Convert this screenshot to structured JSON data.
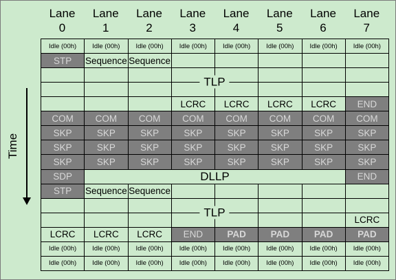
{
  "lanes": [
    {
      "word": "Lane",
      "num": "0"
    },
    {
      "word": "Lane",
      "num": "1"
    },
    {
      "word": "Lane",
      "num": "2"
    },
    {
      "word": "Lane",
      "num": "3"
    },
    {
      "word": "Lane",
      "num": "4"
    },
    {
      "word": "Lane",
      "num": "5"
    },
    {
      "word": "Lane",
      "num": "6"
    },
    {
      "word": "Lane",
      "num": "7"
    }
  ],
  "time_label": "Time",
  "rows": [
    {
      "kind": "cells",
      "cells": [
        {
          "text": "Idle (00h)",
          "style": "small"
        },
        {
          "text": "Idle (00h)",
          "style": "small"
        },
        {
          "text": "Idle (00h)",
          "style": "small"
        },
        {
          "text": "Idle (00h)",
          "style": "small"
        },
        {
          "text": "Idle (00h)",
          "style": "small"
        },
        {
          "text": "Idle (00h)",
          "style": "small"
        },
        {
          "text": "Idle (00h)",
          "style": "small"
        },
        {
          "text": "Idle (00h)",
          "style": "small"
        }
      ]
    },
    {
      "kind": "cells",
      "cells": [
        {
          "text": "STP",
          "style": "gray"
        },
        {
          "text": "Sequence",
          "style": ""
        },
        {
          "text": "Sequence",
          "style": ""
        },
        {
          "text": "",
          "style": ""
        },
        {
          "text": "",
          "style": ""
        },
        {
          "text": "",
          "style": ""
        },
        {
          "text": "",
          "style": ""
        },
        {
          "text": "",
          "style": ""
        }
      ]
    },
    {
      "kind": "span",
      "text": "TLP",
      "rows": 2
    },
    {
      "kind": "cells",
      "cells": [
        {
          "text": "",
          "style": ""
        },
        {
          "text": "",
          "style": ""
        },
        {
          "text": "",
          "style": ""
        },
        {
          "text": "LCRC",
          "style": ""
        },
        {
          "text": "LCRC",
          "style": ""
        },
        {
          "text": "LCRC",
          "style": ""
        },
        {
          "text": "LCRC",
          "style": ""
        },
        {
          "text": "END",
          "style": "gray"
        }
      ]
    },
    {
      "kind": "cells",
      "cells": [
        {
          "text": "COM",
          "style": "gray"
        },
        {
          "text": "COM",
          "style": "gray"
        },
        {
          "text": "COM",
          "style": "gray"
        },
        {
          "text": "COM",
          "style": "gray"
        },
        {
          "text": "COM",
          "style": "gray"
        },
        {
          "text": "COM",
          "style": "gray"
        },
        {
          "text": "COM",
          "style": "gray"
        },
        {
          "text": "COM",
          "style": "gray"
        }
      ]
    },
    {
      "kind": "cells",
      "cells": [
        {
          "text": "SKP",
          "style": "gray"
        },
        {
          "text": "SKP",
          "style": "gray"
        },
        {
          "text": "SKP",
          "style": "gray"
        },
        {
          "text": "SKP",
          "style": "gray"
        },
        {
          "text": "SKP",
          "style": "gray"
        },
        {
          "text": "SKP",
          "style": "gray"
        },
        {
          "text": "SKP",
          "style": "gray"
        },
        {
          "text": "SKP",
          "style": "gray"
        }
      ]
    },
    {
      "kind": "cells",
      "cells": [
        {
          "text": "SKP",
          "style": "gray"
        },
        {
          "text": "SKP",
          "style": "gray"
        },
        {
          "text": "SKP",
          "style": "gray"
        },
        {
          "text": "SKP",
          "style": "gray"
        },
        {
          "text": "SKP",
          "style": "gray"
        },
        {
          "text": "SKP",
          "style": "gray"
        },
        {
          "text": "SKP",
          "style": "gray"
        },
        {
          "text": "SKP",
          "style": "gray"
        }
      ]
    },
    {
      "kind": "cells",
      "cells": [
        {
          "text": "SKP",
          "style": "gray"
        },
        {
          "text": "SKP",
          "style": "gray"
        },
        {
          "text": "SKP",
          "style": "gray"
        },
        {
          "text": "SKP",
          "style": "gray"
        },
        {
          "text": "SKP",
          "style": "gray"
        },
        {
          "text": "SKP",
          "style": "gray"
        },
        {
          "text": "SKP",
          "style": "gray"
        },
        {
          "text": "SKP",
          "style": "gray"
        }
      ]
    },
    {
      "kind": "dllp",
      "first": {
        "text": "SDP",
        "style": "gray"
      },
      "middle": "DLLP",
      "last": {
        "text": "END",
        "style": "gray"
      }
    },
    {
      "kind": "cells",
      "cells": [
        {
          "text": "STP",
          "style": "gray"
        },
        {
          "text": "Sequence",
          "style": ""
        },
        {
          "text": "Sequence",
          "style": ""
        },
        {
          "text": "",
          "style": ""
        },
        {
          "text": "",
          "style": ""
        },
        {
          "text": "",
          "style": ""
        },
        {
          "text": "",
          "style": ""
        },
        {
          "text": "",
          "style": ""
        }
      ]
    },
    {
      "kind": "span",
      "text": "TLP",
      "rows": 2,
      "last_lane_bottom": "LCRC"
    },
    {
      "kind": "cells",
      "cells": [
        {
          "text": "LCRC",
          "style": ""
        },
        {
          "text": "LCRC",
          "style": ""
        },
        {
          "text": "LCRC",
          "style": ""
        },
        {
          "text": "END",
          "style": "gray"
        },
        {
          "text": "PAD",
          "style": "gray bold"
        },
        {
          "text": "PAD",
          "style": "gray bold"
        },
        {
          "text": "PAD",
          "style": "gray bold"
        },
        {
          "text": "PAD",
          "style": "gray bold"
        }
      ]
    },
    {
      "kind": "cells",
      "cells": [
        {
          "text": "Idle (00h)",
          "style": "small"
        },
        {
          "text": "Idle (00h)",
          "style": "small"
        },
        {
          "text": "Idle (00h)",
          "style": "small"
        },
        {
          "text": "Idle (00h)",
          "style": "small"
        },
        {
          "text": "Idle (00h)",
          "style": "small"
        },
        {
          "text": "Idle (00h)",
          "style": "small"
        },
        {
          "text": "Idle (00h)",
          "style": "small"
        },
        {
          "text": "Idle (00h)",
          "style": "small"
        }
      ]
    },
    {
      "kind": "cells",
      "cells": [
        {
          "text": "Idle (00h)",
          "style": "small"
        },
        {
          "text": "Idle (00h)",
          "style": "small"
        },
        {
          "text": "Idle (00h)",
          "style": "small"
        },
        {
          "text": "Idle (00h)",
          "style": "small"
        },
        {
          "text": "Idle (00h)",
          "style": "small"
        },
        {
          "text": "Idle (00h)",
          "style": "small"
        },
        {
          "text": "Idle (00h)",
          "style": "small"
        },
        {
          "text": "Idle (00h)",
          "style": "small"
        }
      ]
    }
  ]
}
